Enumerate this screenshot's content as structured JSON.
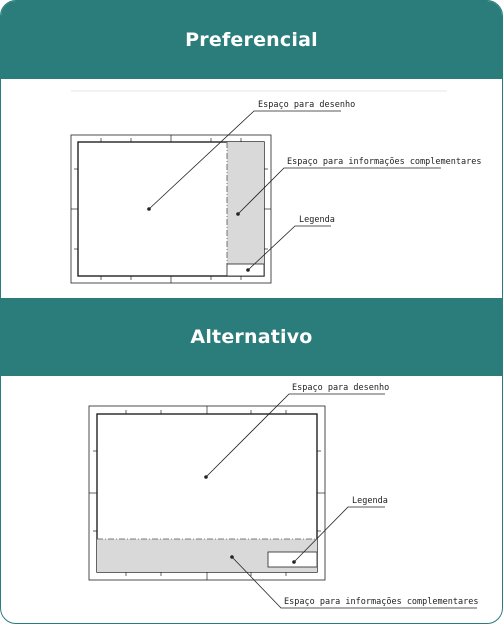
{
  "sections": [
    {
      "title": "Preferencial",
      "labels": {
        "drawing_space": "Espaço para desenho",
        "info_space": "Espaço para informações complementares",
        "legend": "Legenda"
      }
    },
    {
      "title": "Alternativo",
      "labels": {
        "drawing_space": "Espaço para desenho",
        "info_space": "Espaço para informações complementares",
        "legend": "Legenda"
      }
    }
  ],
  "colors": {
    "header_bg": "#2a7d7b",
    "header_text": "#ffffff",
    "info_fill": "#d9d9d9",
    "line": "#222222"
  }
}
